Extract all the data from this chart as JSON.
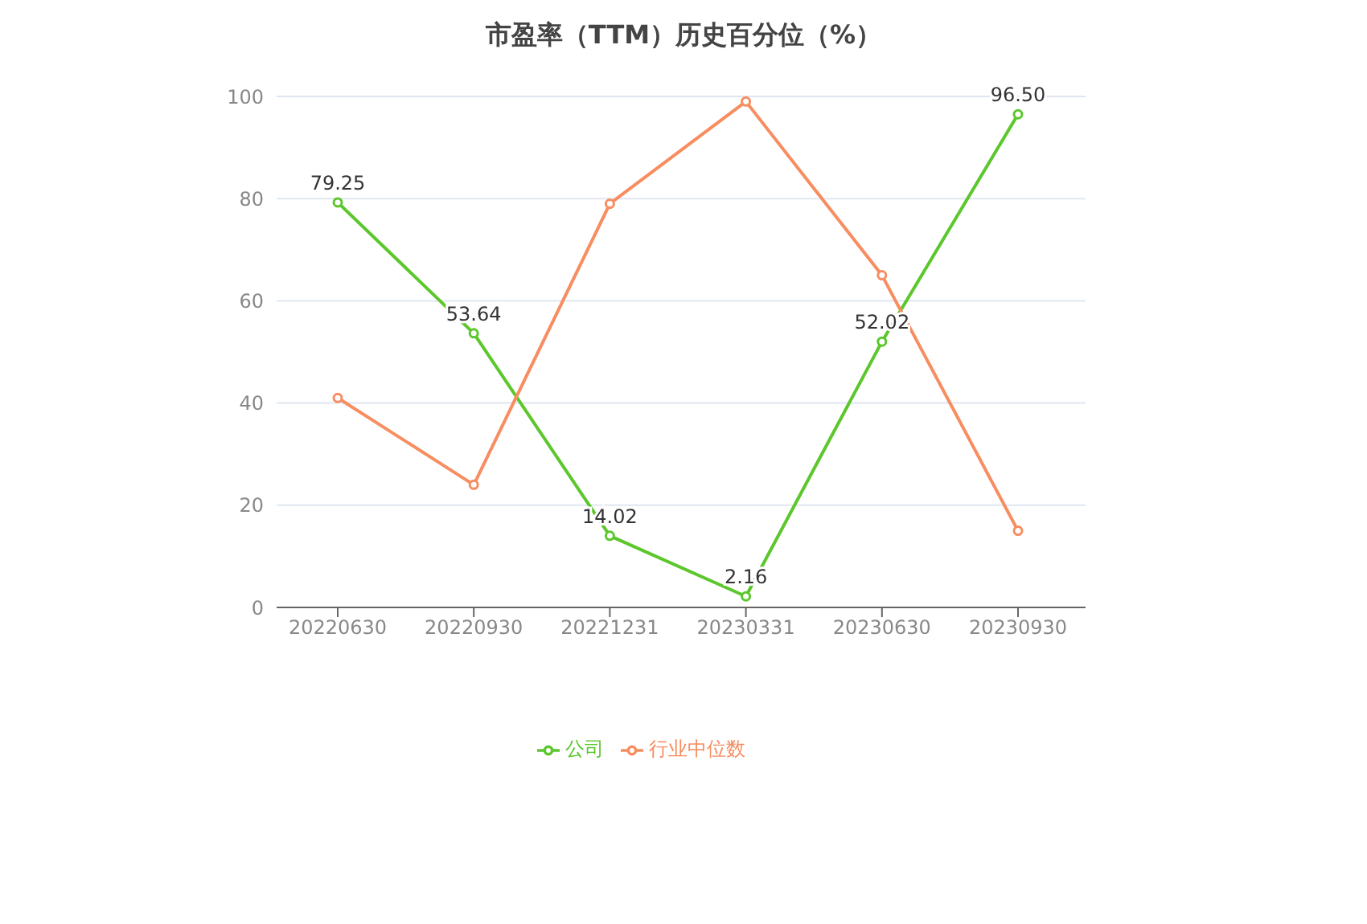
{
  "chart_data": {
    "type": "line",
    "title": "市盈率（TTM）历史百分位（%）",
    "categories": [
      "20220630",
      "20220930",
      "20221231",
      "20230331",
      "20230630",
      "20230930"
    ],
    "series": [
      {
        "name": "公司",
        "color": "#5cc72c",
        "values": [
          79.25,
          53.64,
          14.02,
          2.16,
          52.02,
          96.5
        ],
        "value_labels": [
          "79.25",
          "53.64",
          "14.02",
          "2.16",
          "52.02",
          "96.50"
        ]
      },
      {
        "name": "行业中位数",
        "color": "#f78d60",
        "values": [
          41,
          24,
          79,
          99,
          65,
          15
        ]
      }
    ],
    "ylim": [
      0,
      100
    ],
    "yticks": [
      0,
      20,
      40,
      60,
      80,
      100
    ],
    "grid": "y",
    "legend": "bottom",
    "marker": "circle",
    "line_style": "solid"
  }
}
